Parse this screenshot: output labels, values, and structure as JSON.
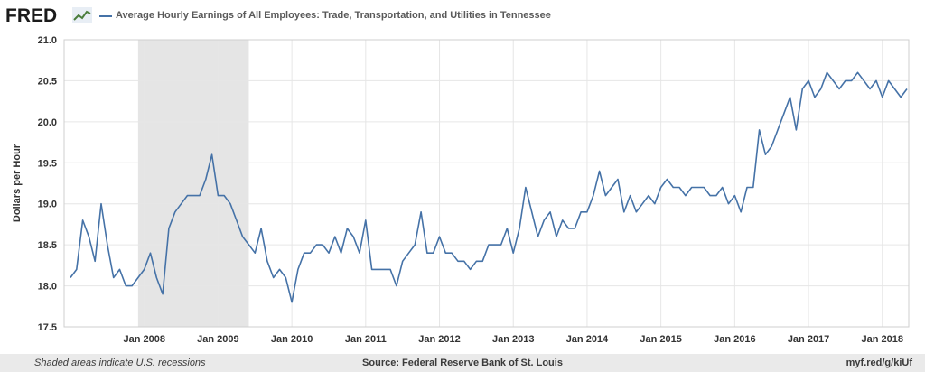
{
  "header": {
    "logo_text": "FRED",
    "logo_icon": "line-chart-icon",
    "legend_label": "Average Hourly Earnings of All Employees: Trade, Transportation, and Utilities in Tennessee",
    "series_color": "#4572a7"
  },
  "footer": {
    "note": "Shaded areas indicate U.S. recessions",
    "source": "Source: Federal Reserve Bank of St. Louis",
    "url": "myf.red/g/kiUf"
  },
  "chart_data": {
    "type": "line",
    "title": "",
    "xlabel": "",
    "ylabel": "Dollars per Hour",
    "ylim": [
      17.5,
      21.0
    ],
    "yticks": [
      "17.5",
      "18.0",
      "18.5",
      "19.0",
      "19.5",
      "20.0",
      "20.5",
      "21.0"
    ],
    "xticks": [
      "Jan 2008",
      "Jan 2009",
      "Jan 2010",
      "Jan 2011",
      "Jan 2012",
      "Jan 2013",
      "Jan 2014",
      "Jan 2015",
      "Jan 2016",
      "Jan 2017",
      "Jan 2018"
    ],
    "x_start": "2007-01",
    "x_end": "2018-05",
    "grid": true,
    "recession": {
      "start": "2007-12",
      "end": "2009-06",
      "color": "#e5e5e5"
    },
    "series": [
      {
        "name": "Average Hourly Earnings of All Employees: Trade, Transportation, and Utilities in Tennessee",
        "color": "#4572a7",
        "x": [
          "2007-01",
          "2007-02",
          "2007-03",
          "2007-04",
          "2007-05",
          "2007-06",
          "2007-07",
          "2007-08",
          "2007-09",
          "2007-10",
          "2007-11",
          "2007-12",
          "2008-01",
          "2008-02",
          "2008-03",
          "2008-04",
          "2008-05",
          "2008-06",
          "2008-07",
          "2008-08",
          "2008-09",
          "2008-10",
          "2008-11",
          "2008-12",
          "2009-01",
          "2009-02",
          "2009-03",
          "2009-04",
          "2009-05",
          "2009-06",
          "2009-07",
          "2009-08",
          "2009-09",
          "2009-10",
          "2009-11",
          "2009-12",
          "2010-01",
          "2010-02",
          "2010-03",
          "2010-04",
          "2010-05",
          "2010-06",
          "2010-07",
          "2010-08",
          "2010-09",
          "2010-10",
          "2010-11",
          "2010-12",
          "2011-01",
          "2011-02",
          "2011-03",
          "2011-04",
          "2011-05",
          "2011-06",
          "2011-07",
          "2011-08",
          "2011-09",
          "2011-10",
          "2011-11",
          "2011-12",
          "2012-01",
          "2012-02",
          "2012-03",
          "2012-04",
          "2012-05",
          "2012-06",
          "2012-07",
          "2012-08",
          "2012-09",
          "2012-10",
          "2012-11",
          "2012-12",
          "2013-01",
          "2013-02",
          "2013-03",
          "2013-04",
          "2013-05",
          "2013-06",
          "2013-07",
          "2013-08",
          "2013-09",
          "2013-10",
          "2013-11",
          "2013-12",
          "2014-01",
          "2014-02",
          "2014-03",
          "2014-04",
          "2014-05",
          "2014-06",
          "2014-07",
          "2014-08",
          "2014-09",
          "2014-10",
          "2014-11",
          "2014-12",
          "2015-01",
          "2015-02",
          "2015-03",
          "2015-04",
          "2015-05",
          "2015-06",
          "2015-07",
          "2015-08",
          "2015-09",
          "2015-10",
          "2015-11",
          "2015-12",
          "2016-01",
          "2016-02",
          "2016-03",
          "2016-04",
          "2016-05",
          "2016-06",
          "2016-07",
          "2016-08",
          "2016-09",
          "2016-10",
          "2016-11",
          "2016-12",
          "2017-01",
          "2017-02",
          "2017-03",
          "2017-04",
          "2017-05",
          "2017-06",
          "2017-07",
          "2017-08",
          "2017-09",
          "2017-10",
          "2017-11",
          "2017-12",
          "2018-01",
          "2018-02",
          "2018-03",
          "2018-04",
          "2018-05"
        ],
        "values": [
          18.1,
          18.2,
          18.8,
          18.6,
          18.3,
          19.0,
          18.5,
          18.1,
          18.2,
          18.0,
          18.0,
          18.1,
          18.2,
          18.4,
          18.1,
          17.9,
          18.7,
          18.9,
          19.0,
          19.1,
          19.1,
          19.1,
          19.3,
          19.6,
          19.1,
          19.1,
          19.0,
          18.8,
          18.6,
          18.5,
          18.4,
          18.7,
          18.3,
          18.1,
          18.2,
          18.1,
          17.8,
          18.2,
          18.4,
          18.4,
          18.5,
          18.5,
          18.4,
          18.6,
          18.4,
          18.7,
          18.6,
          18.4,
          18.8,
          18.2,
          18.2,
          18.2,
          18.2,
          18.0,
          18.3,
          18.4,
          18.5,
          18.9,
          18.4,
          18.4,
          18.6,
          18.4,
          18.4,
          18.3,
          18.3,
          18.2,
          18.3,
          18.3,
          18.5,
          18.5,
          18.5,
          18.7,
          18.4,
          18.7,
          19.2,
          18.9,
          18.6,
          18.8,
          18.9,
          18.6,
          18.8,
          18.7,
          18.7,
          18.9,
          18.9,
          19.1,
          19.4,
          19.1,
          19.2,
          19.3,
          18.9,
          19.1,
          18.9,
          19.0,
          19.1,
          19.0,
          19.2,
          19.3,
          19.2,
          19.2,
          19.1,
          19.2,
          19.2,
          19.2,
          19.1,
          19.1,
          19.2,
          19.0,
          19.1,
          18.9,
          19.2,
          19.2,
          19.9,
          19.6,
          19.7,
          19.9,
          20.1,
          20.3,
          19.9,
          20.4,
          20.5,
          20.3,
          20.4,
          20.6,
          20.5,
          20.4,
          20.5,
          20.5,
          20.6,
          20.5,
          20.4,
          20.5,
          20.3,
          20.5,
          20.4,
          20.3,
          20.4
        ]
      }
    ]
  }
}
